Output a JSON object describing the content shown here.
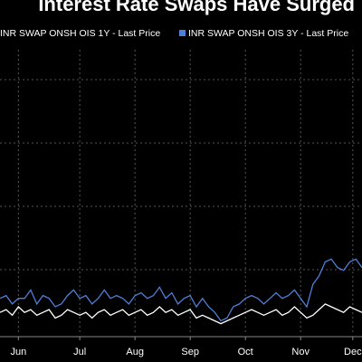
{
  "chart_data": {
    "type": "line",
    "title": "Interest Rate Swaps Have Surged",
    "x": [
      0,
      1,
      2,
      3,
      4,
      5,
      6,
      7,
      8,
      9,
      10,
      11,
      12,
      13,
      14,
      15,
      16,
      17,
      18,
      19,
      20,
      21,
      22,
      23,
      24,
      25,
      26,
      27,
      28,
      29,
      30,
      31,
      32,
      33,
      34,
      35,
      36,
      37,
      38,
      39,
      40,
      41,
      42,
      43,
      44,
      45,
      46,
      47,
      48,
      49,
      50,
      51,
      52,
      53,
      54,
      55,
      56,
      57,
      58,
      59
    ],
    "xlim": [
      0,
      59
    ],
    "xticks": [
      {
        "value": 3,
        "label": "Jun"
      },
      {
        "value": 13,
        "label": "Jul"
      },
      {
        "value": 22,
        "label": "Aug"
      },
      {
        "value": 31,
        "label": "Sep"
      },
      {
        "value": 40,
        "label": "Oct"
      },
      {
        "value": 49,
        "label": "Nov"
      },
      {
        "value": 57.5,
        "label": "Dec"
      }
    ],
    "ylim": [
      0,
      100
    ],
    "grid": true,
    "series": [
      {
        "name": "INR SWAP ONSH OIS 1Y - Last Price",
        "color": "#ffffff",
        "values": [
          8,
          9,
          7,
          10,
          8,
          9,
          7,
          8,
          9,
          6,
          7,
          9,
          8,
          7,
          8,
          6,
          8,
          9,
          7,
          8,
          9,
          7,
          8,
          9,
          7,
          8,
          10,
          8,
          9,
          7,
          8,
          9,
          6,
          7,
          6,
          5,
          4,
          5,
          6,
          7,
          8,
          9,
          8,
          7,
          8,
          9,
          7,
          8,
          10,
          8,
          6,
          7,
          9,
          11,
          10,
          9,
          8,
          10,
          9,
          8
        ]
      },
      {
        "name": "INR SWAP ONSH OIS 3Y - Last Price",
        "color": "#4f7fd6",
        "values": [
          13,
          14,
          11,
          13,
          13,
          16,
          11,
          14,
          13,
          10,
          11,
          14,
          16,
          13,
          14,
          11,
          13,
          16,
          13,
          14,
          13,
          11,
          14,
          15,
          13,
          14,
          17,
          13,
          15,
          11,
          13,
          14,
          10,
          13,
          10,
          8,
          5,
          6,
          10,
          11,
          13,
          14,
          13,
          11,
          13,
          15,
          13,
          14,
          16,
          13,
          10,
          18,
          21,
          26,
          27,
          24,
          23,
          26,
          27,
          24
        ]
      }
    ]
  }
}
